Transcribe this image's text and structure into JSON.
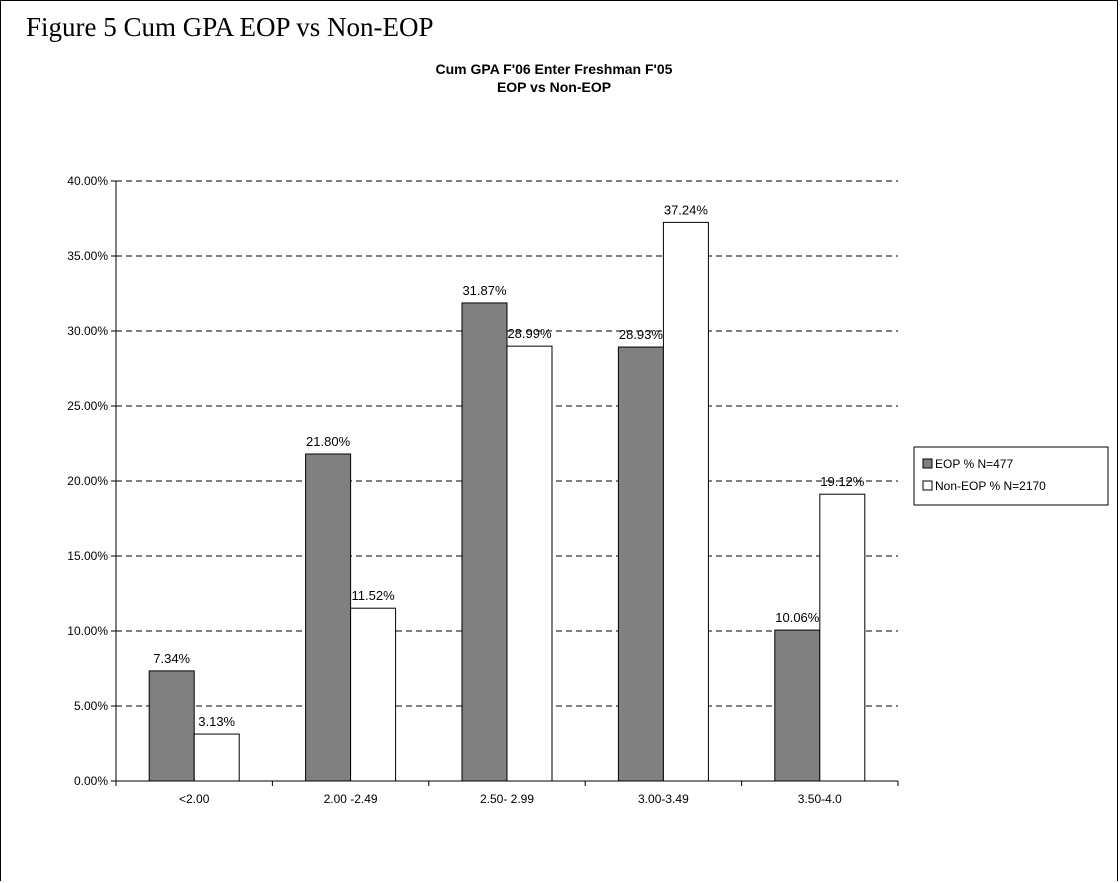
{
  "figure_title": "Figure 5 Cum GPA EOP vs Non-EOP",
  "chart_data": {
    "type": "bar",
    "title": "Cum GPA F'06 Enter Freshman F'05",
    "subtitle": "EOP vs Non-EOP",
    "categories": [
      "<2.00",
      "2.00 -2.49",
      "2.50- 2.99",
      "3.00-3.49",
      "3.50-4.0"
    ],
    "series": [
      {
        "name": "EOP % N=477",
        "color": "#808080",
        "values": [
          7.34,
          21.8,
          31.87,
          28.93,
          10.06
        ],
        "labels": [
          "7.34%",
          "21.80%",
          "31.87%",
          "28.93%",
          "10.06%"
        ]
      },
      {
        "name": "Non-EOP % N=2170",
        "color": "#ffffff",
        "values": [
          3.13,
          11.52,
          28.99,
          37.24,
          19.12
        ],
        "labels": [
          "3.13%",
          "11.52%",
          "28.99%",
          "37.24%",
          "19.12%"
        ]
      }
    ],
    "ylim": [
      0,
      40
    ],
    "yticks": [
      0,
      5,
      10,
      15,
      20,
      25,
      30,
      35,
      40
    ],
    "ytick_labels": [
      "0.00%",
      "5.00%",
      "10.00%",
      "15.00%",
      "20.00%",
      "25.00%",
      "30.00%",
      "35.00%",
      "40.00%"
    ],
    "grid": "horizontal dashed",
    "legend": "right"
  }
}
